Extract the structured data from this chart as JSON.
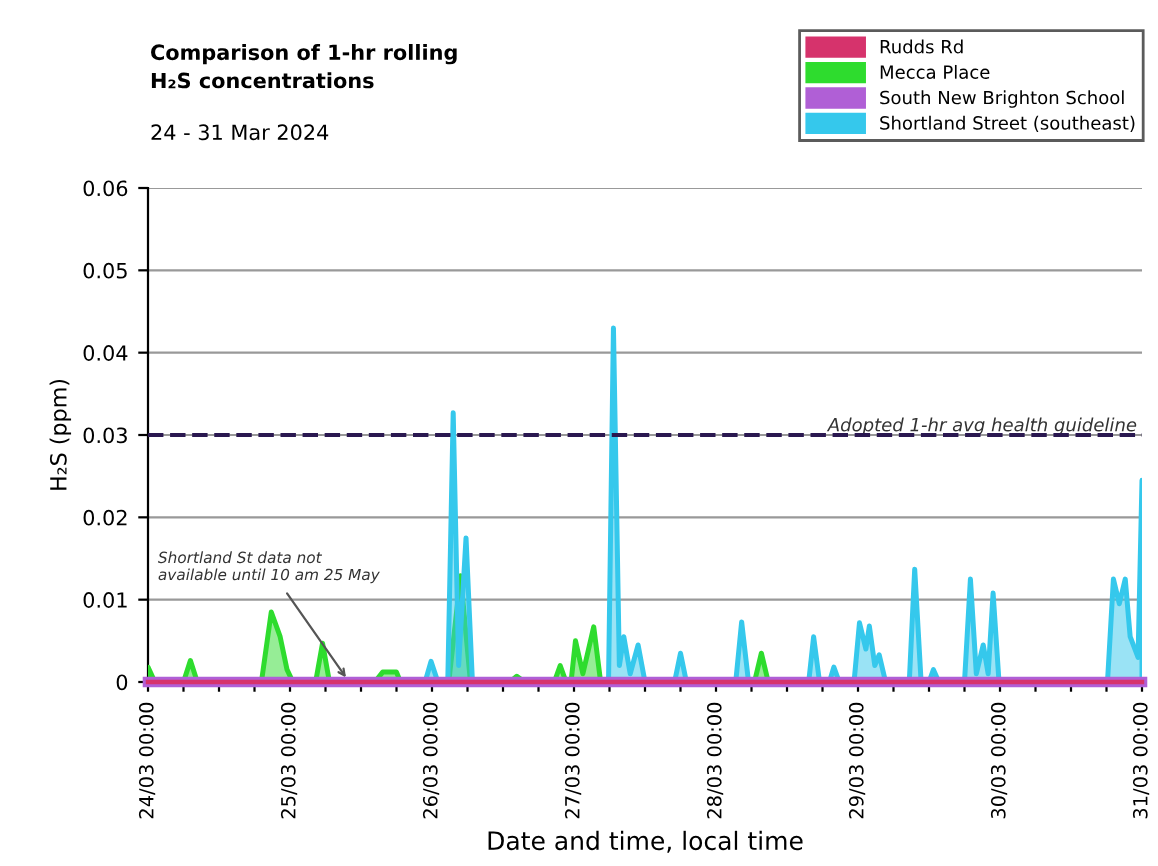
{
  "chart_data": {
    "type": "area",
    "title": "Comparison of 1-hr rolling\nH₂S concentrations",
    "subtitle": "24 - 31 Mar 2024",
    "xlabel": "Date and time, local time",
    "ylabel": "H₂S (ppm)",
    "series": [
      {
        "name": "Rudds Rd",
        "type": "line",
        "color": "#d6336c",
        "x": [
          "2024-03-24T00:00",
          "2024-03-31T00:00"
        ],
        "values": [
          0,
          0
        ]
      },
      {
        "name": "Mecca Place",
        "color": "#2edc2e",
        "x": [
          "2024-03-24T00:00",
          "2024-03-24T01:10",
          "2024-03-24T06:00",
          "2024-03-24T07:10",
          "2024-03-24T08:20",
          "2024-03-24T19:10",
          "2024-03-24T20:50",
          "2024-03-24T22:20",
          "2024-03-24T23:30",
          "2024-03-25T00:30",
          "2024-03-25T04:20",
          "2024-03-25T05:30",
          "2024-03-25T06:40",
          "2024-03-25T14:20",
          "2024-03-25T15:40",
          "2024-03-25T18:00",
          "2024-03-25T18:40",
          "2024-03-26T02:50",
          "2024-03-26T04:50",
          "2024-03-26T06:30",
          "2024-03-26T13:10",
          "2024-03-26T14:20",
          "2024-03-26T15:40",
          "2024-03-26T20:40",
          "2024-03-26T21:40",
          "2024-03-26T22:40",
          "2024-03-26T23:30",
          "2024-03-27T00:15",
          "2024-03-27T01:30",
          "2024-03-27T03:20",
          "2024-03-27T04:30",
          "2024-03-28T06:30",
          "2024-03-28T07:40",
          "2024-03-28T08:50",
          "2024-03-31T00:00"
        ],
        "values": [
          0.0018,
          0,
          0,
          0.0026,
          0,
          0,
          0.0085,
          0.0055,
          0.0015,
          0,
          0,
          0.0047,
          0,
          0,
          0.0012,
          0.0012,
          0,
          0,
          0.0129,
          0,
          0,
          0.0007,
          0,
          0,
          0.002,
          0,
          0,
          0.005,
          0.001,
          0.0067,
          0,
          0,
          0.0035,
          0,
          0
        ]
      },
      {
        "name": "South New Brighton School",
        "type": "line",
        "color": "#b05fd6",
        "x": [
          "2024-03-24T00:00",
          "2024-03-31T00:00"
        ],
        "values": [
          0,
          0
        ]
      },
      {
        "name": "Shortland Street (southeast)",
        "color": "#35c8ec",
        "x": [
          "2024-03-25T10:00",
          "2024-03-25T22:50",
          "2024-03-25T23:50",
          "2024-03-26T01:00",
          "2024-03-26T02:40",
          "2024-03-26T03:35",
          "2024-03-26T04:30",
          "2024-03-26T05:45",
          "2024-03-26T06:50",
          "2024-03-27T05:50",
          "2024-03-27T06:40",
          "2024-03-27T07:40",
          "2024-03-27T08:25",
          "2024-03-27T09:30",
          "2024-03-27T10:50",
          "2024-03-27T12:00",
          "2024-03-27T17:00",
          "2024-03-27T18:00",
          "2024-03-27T19:00",
          "2024-03-28T03:20",
          "2024-03-28T04:20",
          "2024-03-28T05:30",
          "2024-03-28T15:40",
          "2024-03-28T16:30",
          "2024-03-28T17:30",
          "2024-03-28T19:10",
          "2024-03-28T19:55",
          "2024-03-28T20:50",
          "2024-03-28T23:20",
          "2024-03-29T00:15",
          "2024-03-29T01:20",
          "2024-03-29T01:55",
          "2024-03-29T02:50",
          "2024-03-29T03:35",
          "2024-03-29T04:40",
          "2024-03-29T08:40",
          "2024-03-29T09:35",
          "2024-03-29T10:40",
          "2024-03-29T12:00",
          "2024-03-29T12:45",
          "2024-03-29T13:40",
          "2024-03-29T18:00",
          "2024-03-29T19:00",
          "2024-03-29T20:00",
          "2024-03-29T21:10",
          "2024-03-29T22:00",
          "2024-03-29T22:50",
          "2024-03-29T23:50",
          "2024-03-30T18:10",
          "2024-03-30T19:10",
          "2024-03-30T20:10",
          "2024-03-30T21:10",
          "2024-03-30T22:00",
          "2024-03-30T23:20",
          "2024-03-31T00:00"
        ],
        "values": [
          0,
          0,
          0.0025,
          0,
          0,
          0.0327,
          0.002,
          0.0175,
          0,
          0,
          0.043,
          0.002,
          0.0055,
          0.001,
          0.0045,
          0,
          0,
          0.0035,
          0,
          0,
          0.0073,
          0,
          0,
          0.0055,
          0,
          0,
          0.0018,
          0,
          0,
          0.0072,
          0.004,
          0.0068,
          0.002,
          0.0033,
          0,
          0,
          0.0137,
          0,
          0,
          0.0015,
          0,
          0,
          0.0125,
          0.001,
          0.0045,
          0.001,
          0.0108,
          0,
          0,
          0.0125,
          0.0095,
          0.0125,
          0.0055,
          0.003,
          0.0245
        ]
      }
    ],
    "ref_lines": [
      {
        "axis": "y",
        "value": 0.03,
        "label": "Adopted 1-hr avg health guideline",
        "color": "#2a1850",
        "line_style": "dashed"
      }
    ],
    "annotations": [
      {
        "text": "Shortland St data not\navailable until 10 am 25 May",
        "x": "2024-03-25T10:00",
        "y": 0
      }
    ],
    "xlim": [
      "2024-03-24T00:00",
      "2024-03-31T00:00"
    ],
    "xticks": [
      {
        "value": "2024-03-24T00:00",
        "label": "24/03 00:00"
      },
      {
        "value": "2024-03-24T06:00",
        "label": null
      },
      {
        "value": "2024-03-24T12:00",
        "label": null
      },
      {
        "value": "2024-03-24T18:00",
        "label": null
      },
      {
        "value": "2024-03-25T00:00",
        "label": "25/03 00:00"
      },
      {
        "value": "2024-03-25T06:00",
        "label": null
      },
      {
        "value": "2024-03-25T12:00",
        "label": null
      },
      {
        "value": "2024-03-25T18:00",
        "label": null
      },
      {
        "value": "2024-03-26T00:00",
        "label": "26/03 00:00"
      },
      {
        "value": "2024-03-26T06:00",
        "label": null
      },
      {
        "value": "2024-03-26T12:00",
        "label": null
      },
      {
        "value": "2024-03-26T18:00",
        "label": null
      },
      {
        "value": "2024-03-27T00:00",
        "label": "27/03 00:00"
      },
      {
        "value": "2024-03-27T06:00",
        "label": null
      },
      {
        "value": "2024-03-27T12:00",
        "label": null
      },
      {
        "value": "2024-03-27T18:00",
        "label": null
      },
      {
        "value": "2024-03-28T00:00",
        "label": "28/03 00:00"
      },
      {
        "value": "2024-03-28T06:00",
        "label": null
      },
      {
        "value": "2024-03-28T12:00",
        "label": null
      },
      {
        "value": "2024-03-28T18:00",
        "label": null
      },
      {
        "value": "2024-03-29T00:00",
        "label": "29/03 00:00"
      },
      {
        "value": "2024-03-29T06:00",
        "label": null
      },
      {
        "value": "2024-03-29T12:00",
        "label": null
      },
      {
        "value": "2024-03-29T18:00",
        "label": null
      },
      {
        "value": "2024-03-30T00:00",
        "label": "30/03 00:00"
      },
      {
        "value": "2024-03-30T06:00",
        "label": null
      },
      {
        "value": "2024-03-30T12:00",
        "label": null
      },
      {
        "value": "2024-03-30T18:00",
        "label": null
      },
      {
        "value": "2024-03-31T00:00",
        "label": "31/03 00:00"
      }
    ],
    "ylim": [
      0,
      0.06
    ],
    "yticks": [
      {
        "value": 0,
        "label": "0"
      },
      0.01,
      0.02,
      0.03,
      0.04,
      0.05,
      0.06
    ],
    "grid": "y",
    "legend": "top right"
  }
}
